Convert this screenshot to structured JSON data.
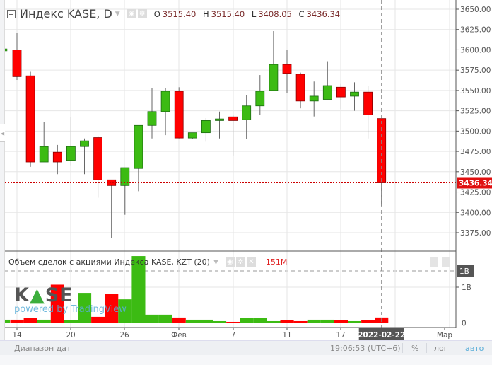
{
  "header": {
    "symbol_title": "Индекс KASE, D",
    "ohlc": [
      {
        "key": "O",
        "value": "3515.40"
      },
      {
        "key": "H",
        "value": "3515.40"
      },
      {
        "key": "L",
        "value": "3408.05"
      },
      {
        "key": "C",
        "value": "3436.34"
      }
    ],
    "icons": [
      "collapse-icon",
      "chevron-down-icon",
      "eye-icon",
      "gear-icon"
    ]
  },
  "volume_legend": {
    "title": "Объем сделок с акциями Индекса KASE, KZT (20)",
    "last_value": "151M",
    "icons": [
      "chevron-down-icon",
      "eye-icon",
      "gear-icon",
      "close-icon"
    ]
  },
  "watermark": {
    "logo": "KASE",
    "powered": "powered by TradingView"
  },
  "price_axis": {
    "ticks": [
      "3650.00",
      "3625.00",
      "3600.00",
      "3575.00",
      "3550.00",
      "3525.00",
      "3500.00",
      "3475.00",
      "3450.00",
      "3425.00",
      "3400.00",
      "3375.00"
    ],
    "last_price_label": "3436.34"
  },
  "volume_axis": {
    "max_label": "1B",
    "ticks": [
      "1B",
      "0"
    ]
  },
  "time_axis": {
    "ticks": [
      "14",
      "20",
      "26",
      "Фев",
      "7",
      "11",
      "17",
      "Мар"
    ],
    "crosshair_label": "2022-02-22"
  },
  "bottom_bar": {
    "date_range": "Диапазон дат",
    "clock": "19:06:53 (UTC+6)",
    "percent": "%",
    "log": "лог",
    "auto": "авто"
  },
  "colors": {
    "up": "#3cbb13",
    "down": "#ff0000",
    "up_border": "#1d6b12",
    "down_border": "#8b0000",
    "last_price": "#e01010",
    "auto_active": "#5aaed8"
  },
  "chart_data": {
    "type": "candlestick",
    "interval": "D",
    "price_range": [
      3355,
      3660
    ],
    "last_price": 3436.34,
    "candles": [
      {
        "o": 3600,
        "h": 3621,
        "l": 3563,
        "c": 3567
      },
      {
        "o": 3568,
        "h": 3573,
        "l": 3456,
        "c": 3462
      },
      {
        "o": 3462,
        "h": 3511,
        "l": 3462,
        "c": 3481
      },
      {
        "o": 3474,
        "h": 3483,
        "l": 3447,
        "c": 3462
      },
      {
        "o": 3464,
        "h": 3517,
        "l": 3458,
        "c": 3481
      },
      {
        "o": 3481,
        "h": 3491,
        "l": 3447,
        "c": 3488
      },
      {
        "o": 3492,
        "h": 3494,
        "l": 3418,
        "c": 3440
      },
      {
        "o": 3440,
        "h": 3440,
        "l": 3368,
        "c": 3433
      },
      {
        "o": 3433,
        "h": 3455,
        "l": 3397,
        "c": 3455
      },
      {
        "o": 3454,
        "h": 3507,
        "l": 3426,
        "c": 3507
      },
      {
        "o": 3507,
        "h": 3553,
        "l": 3491,
        "c": 3524
      },
      {
        "o": 3524,
        "h": 3553,
        "l": 3495,
        "c": 3549
      },
      {
        "o": 3549,
        "h": 3554,
        "l": 3491,
        "c": 3491.5
      },
      {
        "o": 3491.5,
        "h": 3498,
        "l": 3490,
        "c": 3498
      },
      {
        "o": 3498,
        "h": 3516,
        "l": 3487,
        "c": 3513
      },
      {
        "o": 3513,
        "h": 3524,
        "l": 3491,
        "c": 3515
      },
      {
        "o": 3517.5,
        "h": 3520,
        "l": 3470,
        "c": 3513
      },
      {
        "o": 3514,
        "h": 3544,
        "l": 3490,
        "c": 3531
      },
      {
        "o": 3531,
        "h": 3569,
        "l": 3520,
        "c": 3549
      },
      {
        "o": 3550,
        "h": 3623,
        "l": 3550,
        "c": 3582
      },
      {
        "o": 3582,
        "h": 3599.5,
        "l": 3547,
        "c": 3571
      },
      {
        "o": 3570,
        "h": 3572,
        "l": 3528,
        "c": 3537
      },
      {
        "o": 3537,
        "h": 3561,
        "l": 3518,
        "c": 3543
      },
      {
        "o": 3539,
        "h": 3586,
        "l": 3539,
        "c": 3556
      },
      {
        "o": 3554,
        "h": 3558,
        "l": 3527,
        "c": 3542
      },
      {
        "o": 3543,
        "h": 3560,
        "l": 3525,
        "c": 3548
      },
      {
        "o": 3548,
        "h": 3556,
        "l": 3491,
        "c": 3520
      },
      {
        "o": 3515.4,
        "h": 3515.4,
        "l": 3408.05,
        "c": 3436.34
      }
    ],
    "volume_billions": [
      0.09,
      0.13,
      0.09,
      1.07,
      0.07,
      0.84,
      0.17,
      0.82,
      0.66,
      1.87,
      0.23,
      0.23,
      0.15,
      0.09,
      0.09,
      0.05,
      0.03,
      0.13,
      0.13,
      0.05,
      0.07,
      0.05,
      0.09,
      0.09,
      0.07,
      0.05,
      0.07,
      0.151
    ]
  }
}
